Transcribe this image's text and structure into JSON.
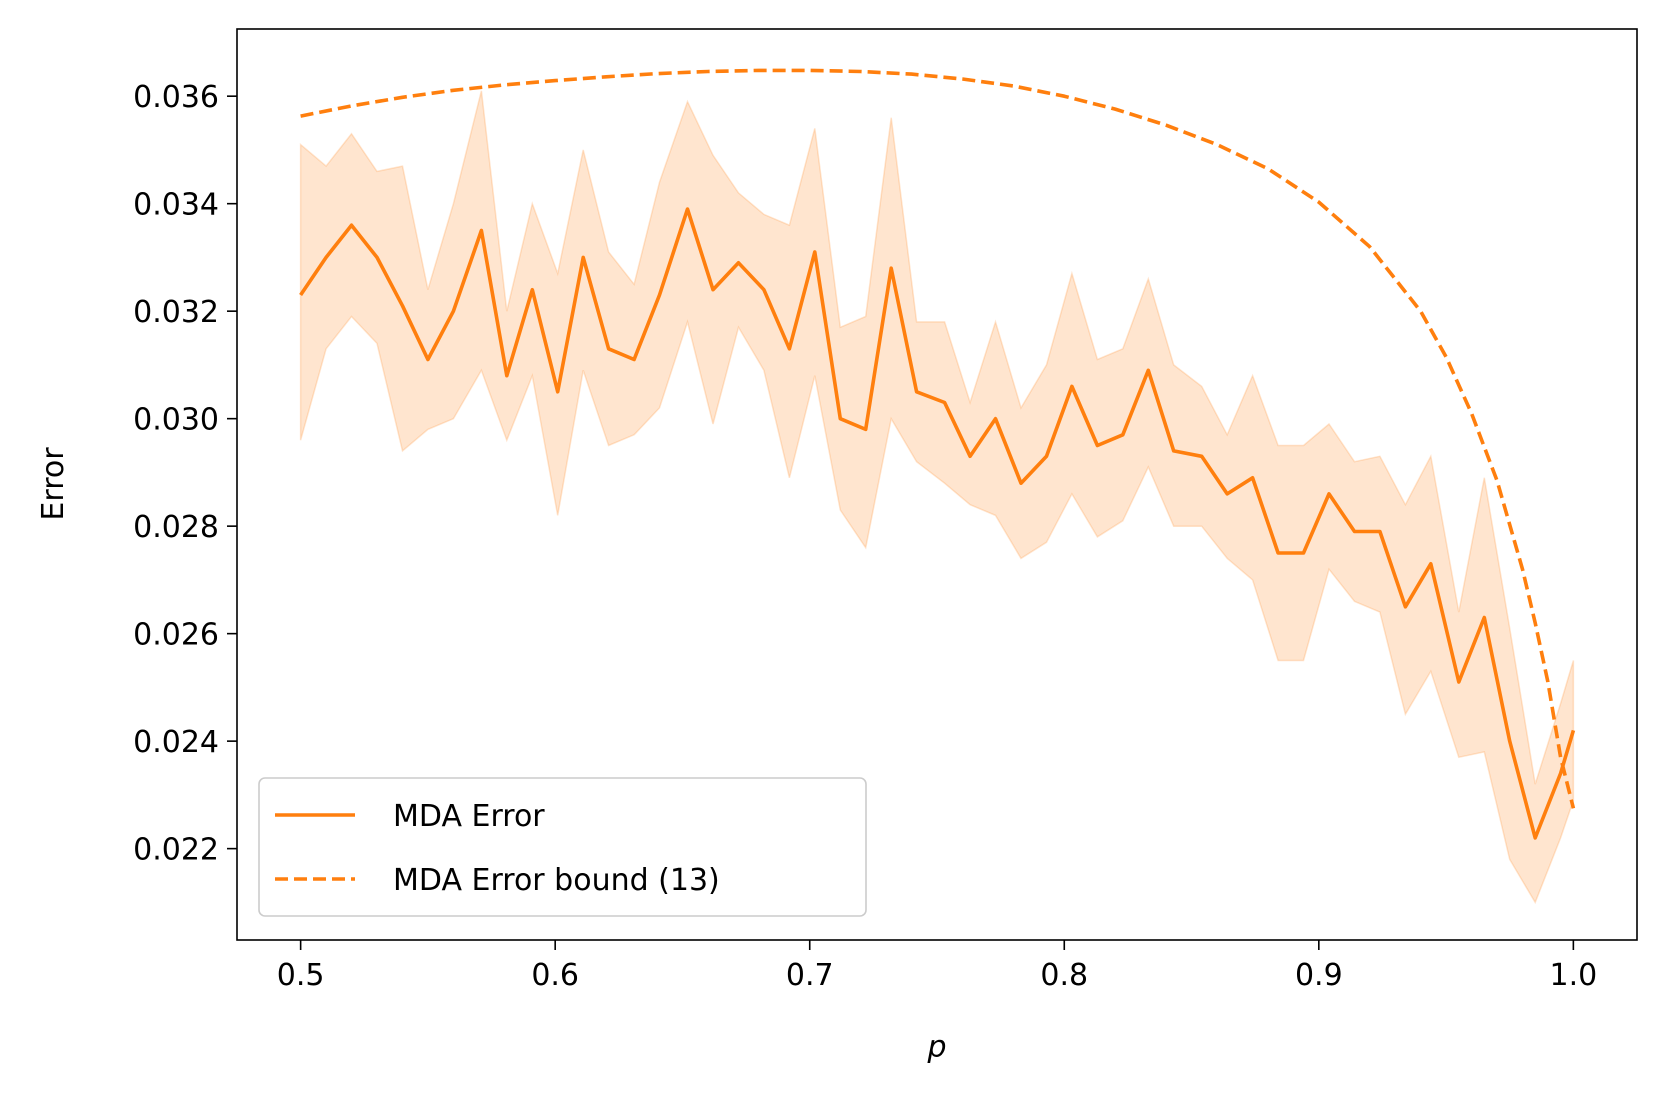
{
  "chart_data": {
    "type": "line",
    "title": "",
    "xlabel": "p",
    "ylabel": "Error",
    "xlim": [
      0.475,
      1.025
    ],
    "ylim": [
      0.0203,
      0.03725
    ],
    "grid": false,
    "legend_position": "lower-left",
    "x_ticks": [
      0.5,
      0.6,
      0.7,
      0.8,
      0.9,
      1.0
    ],
    "x_tick_labels": [
      "0.5",
      "0.6",
      "0.7",
      "0.8",
      "0.9",
      "1.0"
    ],
    "y_ticks": [
      0.022,
      0.024,
      0.026,
      0.028,
      0.03,
      0.032,
      0.034,
      0.036
    ],
    "y_tick_labels": [
      "0.022",
      "0.024",
      "0.026",
      "0.028",
      "0.030",
      "0.032",
      "0.034",
      "0.036"
    ],
    "colors": {
      "line": "#ff7f0e",
      "band": "#ff7f0e"
    },
    "series": [
      {
        "name": "MDA Error",
        "style": "solid",
        "x": [
          0.5,
          0.51,
          0.52,
          0.53,
          0.54,
          0.55,
          0.56,
          0.571,
          0.581,
          0.591,
          0.601,
          0.611,
          0.621,
          0.631,
          0.641,
          0.652,
          0.662,
          0.672,
          0.682,
          0.692,
          0.702,
          0.712,
          0.722,
          0.732,
          0.742,
          0.753,
          0.763,
          0.773,
          0.783,
          0.793,
          0.803,
          0.813,
          0.823,
          0.833,
          0.843,
          0.854,
          0.864,
          0.874,
          0.884,
          0.894,
          0.904,
          0.914,
          0.924,
          0.934,
          0.944,
          0.955,
          0.965,
          0.975,
          0.985,
          0.995,
          1.0
        ],
        "y": [
          0.0323,
          0.033,
          0.0336,
          0.033,
          0.0321,
          0.0311,
          0.032,
          0.0335,
          0.0308,
          0.0324,
          0.0305,
          0.033,
          0.0313,
          0.0311,
          0.0323,
          0.0339,
          0.0324,
          0.0329,
          0.0324,
          0.0313,
          0.0331,
          0.03,
          0.0298,
          0.0328,
          0.0305,
          0.0303,
          0.0293,
          0.03,
          0.0288,
          0.0293,
          0.0306,
          0.0295,
          0.0297,
          0.0309,
          0.0294,
          0.0293,
          0.0286,
          0.0289,
          0.0275,
          0.0275,
          0.0286,
          0.0279,
          0.0279,
          0.0265,
          0.0273,
          0.0251,
          0.0263,
          0.024,
          0.0222,
          0.0234,
          0.0242
        ],
        "lower": [
          0.0296,
          0.0313,
          0.0319,
          0.0314,
          0.0294,
          0.0298,
          0.03,
          0.0309,
          0.0296,
          0.0308,
          0.0282,
          0.0309,
          0.0295,
          0.0297,
          0.0302,
          0.0318,
          0.0299,
          0.0317,
          0.0309,
          0.0289,
          0.0308,
          0.0283,
          0.0276,
          0.03,
          0.0292,
          0.0288,
          0.0284,
          0.0282,
          0.0274,
          0.0277,
          0.0286,
          0.0278,
          0.0281,
          0.0291,
          0.028,
          0.028,
          0.0274,
          0.027,
          0.0255,
          0.0255,
          0.0272,
          0.0266,
          0.0264,
          0.0245,
          0.0253,
          0.0237,
          0.0238,
          0.0218,
          0.021,
          0.0222,
          0.0229
        ],
        "upper": [
          0.0351,
          0.0347,
          0.0353,
          0.0346,
          0.0347,
          0.0324,
          0.034,
          0.0361,
          0.032,
          0.034,
          0.0327,
          0.035,
          0.0331,
          0.0325,
          0.0344,
          0.0359,
          0.0349,
          0.0342,
          0.0338,
          0.0336,
          0.0354,
          0.0317,
          0.0319,
          0.0356,
          0.0318,
          0.0318,
          0.0303,
          0.0318,
          0.0302,
          0.031,
          0.0327,
          0.0311,
          0.0313,
          0.0326,
          0.031,
          0.0306,
          0.0297,
          0.0308,
          0.0295,
          0.0295,
          0.0299,
          0.0292,
          0.0293,
          0.0284,
          0.0293,
          0.0264,
          0.0289,
          0.0261,
          0.0232,
          0.0247,
          0.0255
        ]
      },
      {
        "name": "MDA Error bound (13)",
        "style": "dashed",
        "x": [
          0.5,
          0.52,
          0.54,
          0.56,
          0.58,
          0.6,
          0.62,
          0.64,
          0.66,
          0.68,
          0.7,
          0.72,
          0.74,
          0.76,
          0.78,
          0.8,
          0.82,
          0.84,
          0.86,
          0.88,
          0.9,
          0.92,
          0.94,
          0.95,
          0.96,
          0.97,
          0.98,
          0.985,
          0.99,
          0.995,
          1.0
        ],
        "y": [
          0.03563,
          0.03582,
          0.03598,
          0.03611,
          0.03621,
          0.03629,
          0.03636,
          0.03642,
          0.03646,
          0.03648,
          0.03648,
          0.03646,
          0.03641,
          0.03632,
          0.03619,
          0.036,
          0.03576,
          0.03546,
          0.0351,
          0.03465,
          0.03403,
          0.0332,
          0.032,
          0.03115,
          0.0301,
          0.02885,
          0.0272,
          0.0262,
          0.0251,
          0.0237,
          0.02275
        ]
      }
    ]
  }
}
